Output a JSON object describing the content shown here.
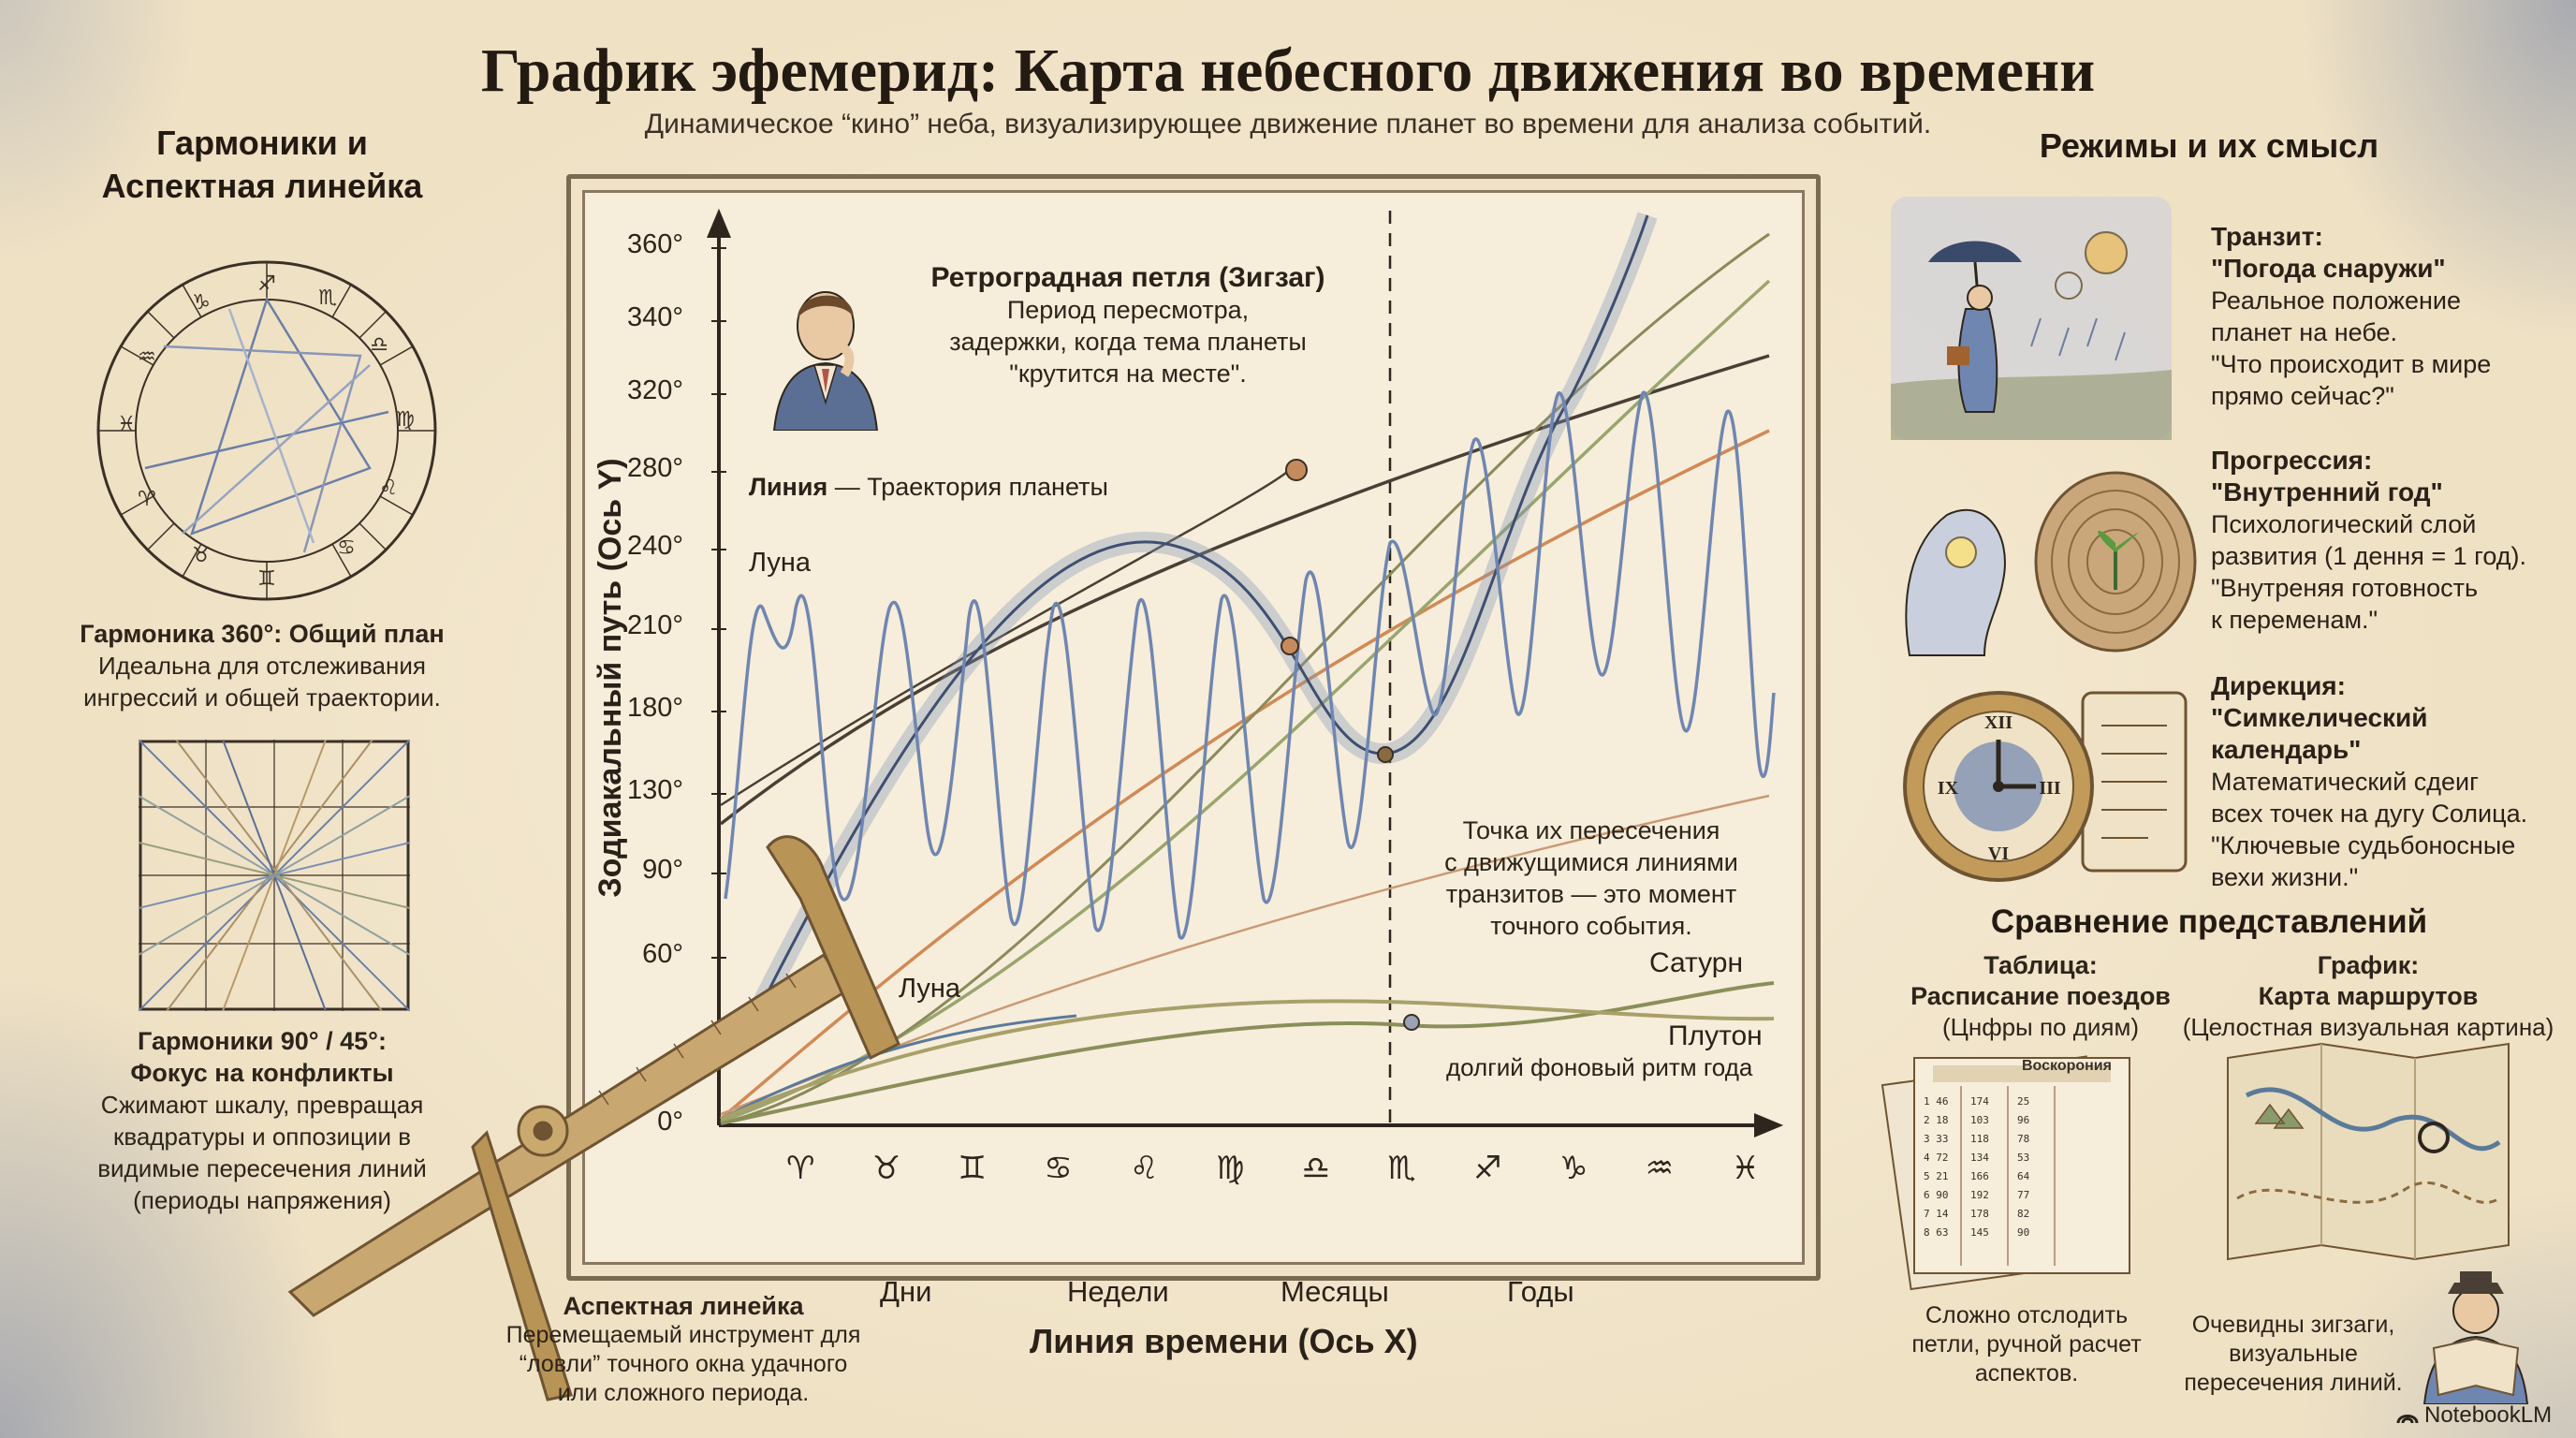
{
  "header": {
    "title": "График эфемерид: Карта небесного движения во времени",
    "subtitle": "Динамическое “кино” неба, визуализирующее движение планет во времени для анализа событий."
  },
  "left": {
    "section_title_line1": "Гармоники и",
    "section_title_line2": "Аспектная линейка",
    "harmonic360_title": "Гармоника 360°: Общий план",
    "harmonic360_text_line1": "Идеальна для отслеживания",
    "harmonic360_text_line2": "ингрессий и общей траектории.",
    "harmonic90_title_line1": "Гармоники 90° / 45°:",
    "harmonic90_title_line2": "Фокус на конфликты",
    "harmonic90_text": [
      "Сжимают шкалу, превращая",
      "квадратуры и оппозиции в",
      "видимые пересечения линий",
      "(периоды напряжения)"
    ],
    "ruler_title": "Аспектная линейка",
    "ruler_text": [
      "Перемещаемый инструмент для",
      "“ловли” точного окна удачного",
      "или сложного периода."
    ]
  },
  "chart": {
    "y_axis_label": "Зодиакальный путь (Ось Y)",
    "x_axis_label": "Линия времени (Ось X)",
    "y_ticks": [
      "360°",
      "340°",
      "320°",
      "280°",
      "240°",
      "210°",
      "180°",
      "130°",
      "90°",
      "60°",
      "0°"
    ],
    "time_labels": [
      "Дни",
      "Недели",
      "Месяцы",
      "Годы"
    ],
    "zodiac_glyphs": [
      "♈",
      "♉",
      "♊",
      "♋",
      "♌",
      "♍",
      "♎",
      "♏",
      "♐",
      "♑",
      "♒",
      "♓"
    ],
    "retro_title": "Ретроградная петля (Зигзаг)",
    "retro_text": [
      "Период пересмотра,",
      "задержки, когда тема планеты",
      "\"крутится на месте\"."
    ],
    "line_legend_bold": "Линия",
    "line_legend_text": " — Траектория планеты",
    "label_moon_top": "Луна",
    "label_moon_bottom": "Луна",
    "intersection_text": [
      "Точка их пересечения",
      "с движущимися линиями",
      "транзитов — это момент",
      "точного события."
    ],
    "label_saturn": "Сатурн",
    "label_pluto": "Плутон",
    "pluto_note": "долгий фоновый ритм года"
  },
  "chart_data": {
    "type": "line",
    "xlabel": "Линия времени (Ось X)",
    "ylabel": "Зодиакальный путь (Ось Y)",
    "ylim": [
      0,
      360
    ],
    "series": [
      {
        "name": "Луна",
        "role": "fast oscillation",
        "x": [
          0,
          1,
          2,
          3,
          4,
          5,
          6,
          7,
          8,
          9,
          10,
          11,
          12
        ],
        "y": [
          90,
          230,
          110,
          220,
          100,
          215,
          95,
          225,
          120,
          270,
          140,
          300,
          180
        ]
      },
      {
        "name": "Сатурн",
        "x": [
          0,
          12
        ],
        "y": [
          0,
          60
        ]
      },
      {
        "name": "Плутон",
        "x": [
          0,
          12
        ],
        "y": [
          0,
          45
        ]
      }
    ]
  },
  "right": {
    "section_title": "Режимы и их смысл",
    "transit_title_line1": "Транзит:",
    "transit_title_line2": "\"Погода снаружи\"",
    "transit_text": [
      "Реальное положение",
      "планет на небе.",
      "\"Что происходит в мире",
      "прямо сейчас?\""
    ],
    "progression_title_line1": "Прогрессия:",
    "progression_title_line2": "\"Внутренний год\"",
    "progression_text": [
      "Психологический слой",
      "развития (1 дення = 1 год).",
      "\"Внутреняя готовность",
      "к переменам.\""
    ],
    "direction_title_line1": "Дирекция:",
    "direction_title_line2": "\"Симкелический календарь\"",
    "direction_text": [
      "Математический сдеиг",
      "всех точек на дугу Солица.",
      "\"Ключевые судьбоносные",
      "вехи жизни.\""
    ],
    "compare_title": "Сравнение представлений",
    "table_title_line1": "Таблица:",
    "table_title_line2": "Расписание поездов",
    "table_sub": "(Цнфры по диям)",
    "table_header": "Воскорония",
    "table_note": [
      "Сложно отслодить",
      "петли, ручной расчет",
      "аспектов."
    ],
    "graph_title_line1": "График:",
    "graph_title_line2": "Карта маршрутов",
    "graph_sub": "(Целостная визуальная картина)",
    "graph_note": [
      "Очевидны зигзаги,",
      "визуальные",
      "пересечения линий."
    ]
  },
  "footer": {
    "brand": "NotebookLM"
  }
}
